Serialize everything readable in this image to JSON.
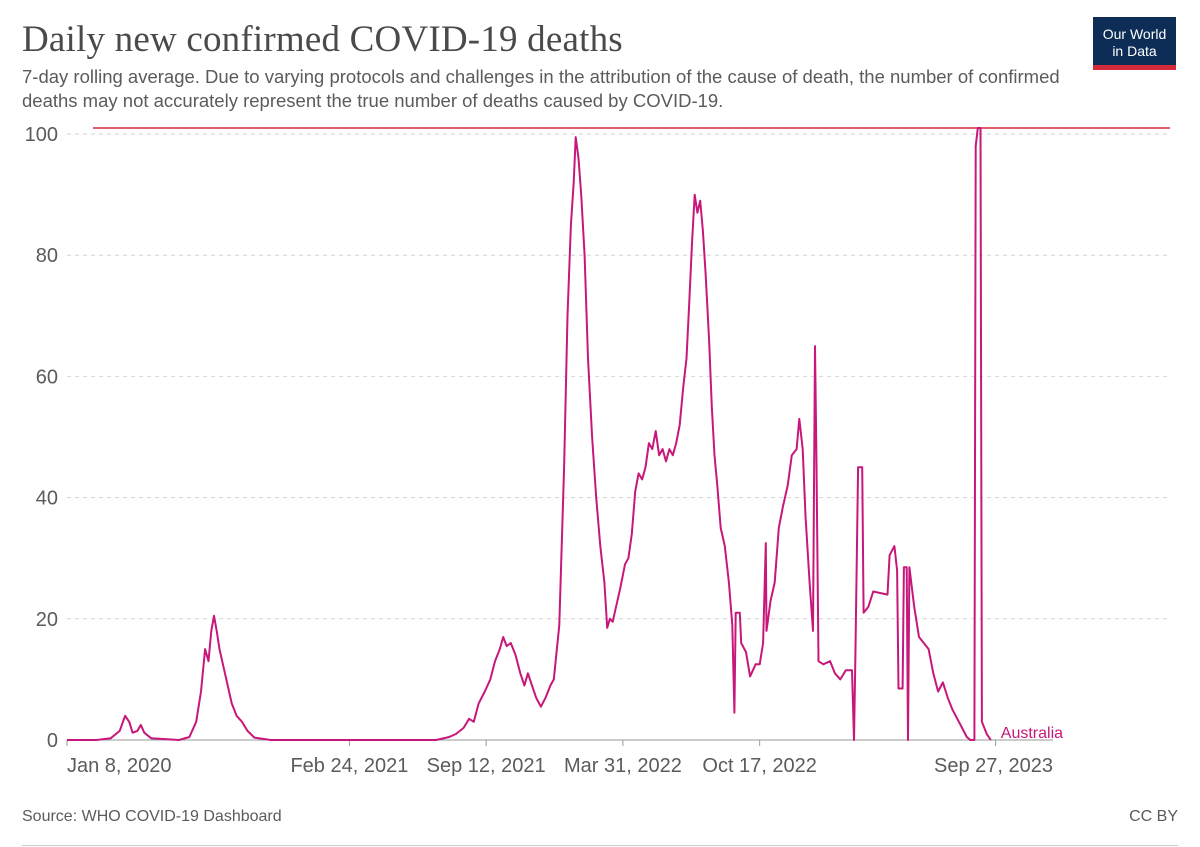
{
  "header": {
    "title": "Daily new confirmed COVID-19 deaths",
    "subtitle": "7-day rolling average. Due to varying protocols and challenges in the attribution of the cause of death, the number of confirmed deaths may not accurately represent the true number of deaths caused by COVID-19."
  },
  "logo": {
    "line1": "Our World",
    "line2": "in Data"
  },
  "footer": {
    "source": "Source: WHO COVID-19 Dashboard",
    "license": "CC BY"
  },
  "colors": {
    "series": "#c8177a",
    "reference_line": "#d42b3a",
    "grid": "#d6d6d6",
    "logo_bg": "#0d2d57"
  },
  "chart_data": {
    "type": "line",
    "title": "Daily new confirmed COVID-19 deaths",
    "xlabel": "",
    "ylabel": "",
    "xlim": [
      "2020-01-08",
      "2023-12-20"
    ],
    "ylim": [
      0,
      101
    ],
    "yticks": [
      0,
      20,
      40,
      60,
      80,
      100
    ],
    "xtick_labels": [
      {
        "date": "2020-01-08",
        "label": "Jan 8, 2020"
      },
      {
        "date": "2021-02-24",
        "label": "Feb 24, 2021"
      },
      {
        "date": "2021-09-12",
        "label": "Sep 12, 2021"
      },
      {
        "date": "2022-03-31",
        "label": "Mar 31, 2022"
      },
      {
        "date": "2022-10-17",
        "label": "Oct 17, 2022"
      },
      {
        "date": "2023-09-27",
        "label": "Sep 27, 2023"
      }
    ],
    "grid": "horizontal-dashed",
    "series": [
      {
        "name": "Australia",
        "points": [
          [
            "2020-01-08",
            0
          ],
          [
            "2020-02-20",
            0
          ],
          [
            "2020-03-12",
            0.3
          ],
          [
            "2020-03-25",
            1.5
          ],
          [
            "2020-04-02",
            4
          ],
          [
            "2020-04-08",
            3
          ],
          [
            "2020-04-13",
            1.2
          ],
          [
            "2020-04-20",
            1.5
          ],
          [
            "2020-04-25",
            2.5
          ],
          [
            "2020-04-30",
            1.2
          ],
          [
            "2020-05-10",
            0.3
          ],
          [
            "2020-06-20",
            0
          ],
          [
            "2020-07-05",
            0.5
          ],
          [
            "2020-07-15",
            3
          ],
          [
            "2020-07-22",
            8
          ],
          [
            "2020-07-28",
            15
          ],
          [
            "2020-08-02",
            13
          ],
          [
            "2020-08-06",
            18
          ],
          [
            "2020-08-10",
            20.5
          ],
          [
            "2020-08-14",
            18
          ],
          [
            "2020-08-18",
            15
          ],
          [
            "2020-08-24",
            12
          ],
          [
            "2020-08-30",
            9
          ],
          [
            "2020-09-05",
            6
          ],
          [
            "2020-09-12",
            4
          ],
          [
            "2020-09-20",
            3
          ],
          [
            "2020-09-28",
            1.5
          ],
          [
            "2020-10-08",
            0.4
          ],
          [
            "2020-11-01",
            0
          ],
          [
            "2021-07-01",
            0
          ],
          [
            "2021-07-20",
            0.5
          ],
          [
            "2021-07-30",
            1
          ],
          [
            "2021-08-10",
            2
          ],
          [
            "2021-08-18",
            3.5
          ],
          [
            "2021-08-25",
            3
          ],
          [
            "2021-09-01",
            6
          ],
          [
            "2021-09-10",
            8
          ],
          [
            "2021-09-18",
            10
          ],
          [
            "2021-09-25",
            13
          ],
          [
            "2021-10-02",
            15
          ],
          [
            "2021-10-07",
            17
          ],
          [
            "2021-10-12",
            15.5
          ],
          [
            "2021-10-18",
            16
          ],
          [
            "2021-10-25",
            14
          ],
          [
            "2021-11-01",
            11
          ],
          [
            "2021-11-07",
            9
          ],
          [
            "2021-11-12",
            11
          ],
          [
            "2021-11-18",
            9
          ],
          [
            "2021-11-24",
            7
          ],
          [
            "2021-12-01",
            5.5
          ],
          [
            "2021-12-08",
            7
          ],
          [
            "2021-12-15",
            9
          ],
          [
            "2021-12-20",
            10
          ],
          [
            "2021-12-28",
            19
          ],
          [
            "2022-01-04",
            45
          ],
          [
            "2022-01-09",
            70
          ],
          [
            "2022-01-14",
            85
          ],
          [
            "2022-01-18",
            92
          ],
          [
            "2022-01-21",
            99.5
          ],
          [
            "2022-01-25",
            96
          ],
          [
            "2022-01-29",
            90
          ],
          [
            "2022-02-03",
            80
          ],
          [
            "2022-02-08",
            63
          ],
          [
            "2022-02-14",
            50
          ],
          [
            "2022-02-20",
            40
          ],
          [
            "2022-02-26",
            32
          ],
          [
            "2022-03-04",
            26
          ],
          [
            "2022-03-08",
            18.5
          ],
          [
            "2022-03-12",
            20
          ],
          [
            "2022-03-16",
            19.5
          ],
          [
            "2022-03-20",
            21.5
          ],
          [
            "2022-03-27",
            25
          ],
          [
            "2022-04-03",
            29
          ],
          [
            "2022-04-08",
            30
          ],
          [
            "2022-04-13",
            34
          ],
          [
            "2022-04-18",
            41
          ],
          [
            "2022-04-23",
            44
          ],
          [
            "2022-04-28",
            43
          ],
          [
            "2022-05-03",
            45
          ],
          [
            "2022-05-08",
            49
          ],
          [
            "2022-05-13",
            48
          ],
          [
            "2022-05-18",
            51
          ],
          [
            "2022-05-23",
            47
          ],
          [
            "2022-05-28",
            48
          ],
          [
            "2022-06-02",
            46
          ],
          [
            "2022-06-07",
            48
          ],
          [
            "2022-06-12",
            47
          ],
          [
            "2022-06-17",
            49
          ],
          [
            "2022-06-22",
            52
          ],
          [
            "2022-06-27",
            58
          ],
          [
            "2022-07-02",
            63
          ],
          [
            "2022-07-06",
            72
          ],
          [
            "2022-07-10",
            82
          ],
          [
            "2022-07-14",
            90
          ],
          [
            "2022-07-18",
            87
          ],
          [
            "2022-07-22",
            89
          ],
          [
            "2022-07-26",
            84
          ],
          [
            "2022-07-30",
            77
          ],
          [
            "2022-08-04",
            66
          ],
          [
            "2022-08-08",
            55
          ],
          [
            "2022-08-12",
            47
          ],
          [
            "2022-08-16",
            42
          ],
          [
            "2022-08-21",
            35
          ],
          [
            "2022-08-27",
            32
          ],
          [
            "2022-09-02",
            26
          ],
          [
            "2022-09-07",
            19
          ],
          [
            "2022-09-10",
            4.5
          ],
          [
            "2022-09-12",
            21
          ],
          [
            "2022-09-18",
            21
          ],
          [
            "2022-09-20",
            16
          ],
          [
            "2022-09-27",
            14.5
          ],
          [
            "2022-10-03",
            10.5
          ],
          [
            "2022-10-11",
            12.5
          ],
          [
            "2022-10-17",
            12.5
          ],
          [
            "2022-10-22",
            16
          ],
          [
            "2022-10-26",
            32.5
          ],
          [
            "2022-10-27",
            18
          ],
          [
            "2022-11-02",
            23
          ],
          [
            "2022-11-08",
            26
          ],
          [
            "2022-11-14",
            35
          ],
          [
            "2022-11-20",
            38.5
          ],
          [
            "2022-11-27",
            42
          ],
          [
            "2022-12-03",
            47
          ],
          [
            "2022-12-10",
            48
          ],
          [
            "2022-12-14",
            53
          ],
          [
            "2022-12-19",
            48
          ],
          [
            "2022-12-23",
            37
          ],
          [
            "2022-12-29",
            26
          ],
          [
            "2023-01-03",
            18
          ],
          [
            "2023-01-06",
            65
          ],
          [
            "2023-01-08",
            47
          ],
          [
            "2023-01-11",
            13
          ],
          [
            "2023-01-18",
            12.5
          ],
          [
            "2023-01-28",
            13
          ],
          [
            "2023-02-04",
            11
          ],
          [
            "2023-02-12",
            10
          ],
          [
            "2023-02-20",
            11.5
          ],
          [
            "2023-03-01",
            11.5
          ],
          [
            "2023-03-04",
            0
          ],
          [
            "2023-03-06",
            14
          ],
          [
            "2023-03-10",
            45
          ],
          [
            "2023-03-16",
            45
          ],
          [
            "2023-03-18",
            21
          ],
          [
            "2023-03-25",
            22
          ],
          [
            "2023-04-01",
            24.5
          ],
          [
            "2023-04-22",
            24
          ],
          [
            "2023-04-25",
            30.5
          ],
          [
            "2023-05-02",
            32
          ],
          [
            "2023-05-06",
            28
          ],
          [
            "2023-05-08",
            8.5
          ],
          [
            "2023-05-14",
            8.5
          ],
          [
            "2023-05-16",
            28.5
          ],
          [
            "2023-05-20",
            28.5
          ],
          [
            "2023-05-22",
            0
          ],
          [
            "2023-05-24",
            28.5
          ],
          [
            "2023-05-31",
            22
          ],
          [
            "2023-06-07",
            17
          ],
          [
            "2023-06-14",
            16
          ],
          [
            "2023-06-21",
            15
          ],
          [
            "2023-06-28",
            11
          ],
          [
            "2023-07-05",
            8
          ],
          [
            "2023-07-12",
            9.5
          ],
          [
            "2023-07-19",
            7
          ],
          [
            "2023-07-26",
            5
          ],
          [
            "2023-08-02",
            3.5
          ],
          [
            "2023-08-09",
            2
          ],
          [
            "2023-08-16",
            0.5
          ],
          [
            "2023-08-21",
            0
          ],
          [
            "2023-08-27",
            0
          ],
          [
            "2023-08-29",
            98
          ],
          [
            "2023-09-01",
            101
          ],
          [
            "2023-09-05",
            101
          ],
          [
            "2023-09-07",
            3
          ],
          [
            "2023-09-14",
            1
          ],
          [
            "2023-09-20",
            0
          ]
        ]
      }
    ]
  }
}
